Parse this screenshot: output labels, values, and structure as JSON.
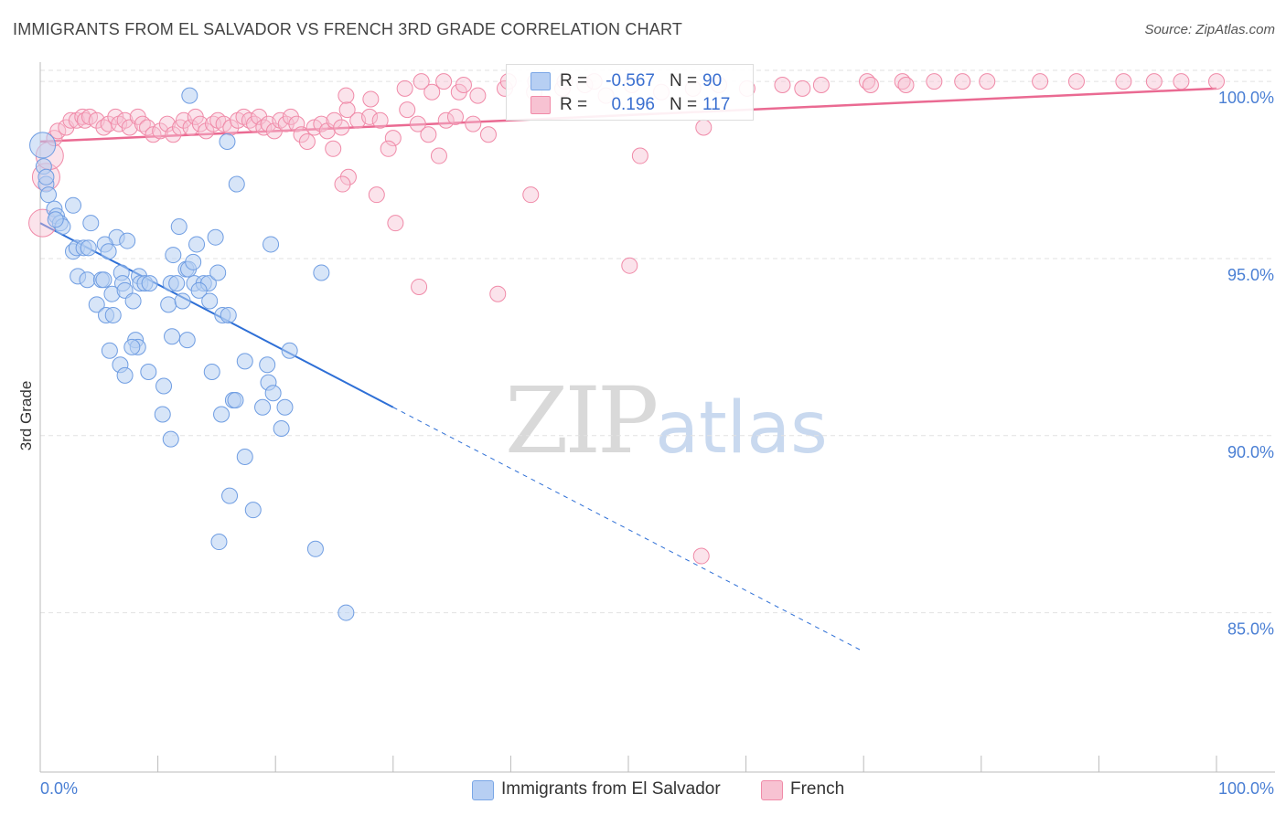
{
  "title": "IMMIGRANTS FROM EL SALVADOR VS FRENCH 3RD GRADE CORRELATION CHART",
  "source": "Source: ZipAtlas.com",
  "watermark": {
    "zip": "ZIP",
    "atlas": "atlas"
  },
  "colors": {
    "blue": "#7aa6e6",
    "blue_fill": "#b7cff3",
    "pink": "#f08aa8",
    "pink_fill": "#f7c2d2",
    "blue_line": "#2e6fd6",
    "pink_line": "#ea6a92",
    "tick_text": "#4a7fd4"
  },
  "stats": [
    {
      "r_label": "R =",
      "r_value": "-0.567",
      "n_label": "N =",
      "n_value": "90",
      "color": "#b7cff3",
      "border": "#7aa6e6"
    },
    {
      "r_label": "R =",
      "r_value": "0.196",
      "n_label": "N =",
      "n_value": "117",
      "color": "#f7c2d2",
      "border": "#f08aa8"
    }
  ],
  "chart_data": {
    "type": "scatter",
    "title": "IMMIGRANTS FROM EL SALVADOR VS FRENCH 3RD GRADE CORRELATION CHART",
    "xlabel": "",
    "ylabel": "3rd Grade",
    "xlim": [
      0,
      100
    ],
    "ylim": [
      80.5,
      100.7
    ],
    "x_tick_labels": [
      "0.0%",
      "100.0%"
    ],
    "y_ticks": [
      85,
      90,
      95,
      100
    ],
    "y_tick_labels": [
      "85.0%",
      "90.0%",
      "95.0%",
      "100.0%"
    ],
    "grid": true,
    "legend_position": "bottom-center",
    "series": [
      {
        "name": "Immigrants from El Salvador",
        "color": "#7aa6e6",
        "points": [
          [
            0.2,
            98.2
          ],
          [
            0.3,
            97.6
          ],
          [
            0.5,
            97.1
          ],
          [
            0.7,
            96.8
          ],
          [
            1.2,
            96.4
          ],
          [
            1.4,
            96.2
          ],
          [
            1.7,
            96.0
          ],
          [
            1.9,
            95.9
          ],
          [
            2.8,
            96.5
          ],
          [
            0.5,
            97.3
          ],
          [
            1.3,
            96.1
          ],
          [
            4.3,
            96.0
          ],
          [
            6.5,
            95.6
          ],
          [
            2.8,
            95.2
          ],
          [
            3.1,
            95.3
          ],
          [
            3.7,
            95.3
          ],
          [
            4.1,
            95.3
          ],
          [
            5.5,
            95.4
          ],
          [
            5.8,
            95.2
          ],
          [
            7.4,
            95.5
          ],
          [
            11.8,
            95.9
          ],
          [
            13.3,
            95.4
          ],
          [
            14.9,
            95.6
          ],
          [
            19.6,
            95.4
          ],
          [
            3.2,
            94.5
          ],
          [
            4.0,
            94.4
          ],
          [
            5.2,
            94.4
          ],
          [
            5.4,
            94.4
          ],
          [
            6.9,
            94.6
          ],
          [
            7.0,
            94.3
          ],
          [
            8.4,
            94.5
          ],
          [
            8.5,
            94.3
          ],
          [
            8.9,
            94.3
          ],
          [
            9.3,
            94.3
          ],
          [
            11.1,
            94.3
          ],
          [
            11.6,
            94.3
          ],
          [
            12.4,
            94.7
          ],
          [
            12.6,
            94.7
          ],
          [
            13.0,
            94.9
          ],
          [
            13.1,
            94.3
          ],
          [
            13.9,
            94.3
          ],
          [
            14.3,
            94.3
          ],
          [
            15.1,
            94.6
          ],
          [
            23.9,
            94.6
          ],
          [
            11.3,
            95.1
          ],
          [
            4.8,
            93.7
          ],
          [
            5.6,
            93.4
          ],
          [
            6.1,
            94.0
          ],
          [
            6.2,
            93.4
          ],
          [
            7.2,
            94.1
          ],
          [
            7.9,
            93.8
          ],
          [
            10.9,
            93.7
          ],
          [
            12.1,
            93.8
          ],
          [
            13.5,
            94.1
          ],
          [
            14.4,
            93.8
          ],
          [
            15.5,
            93.4
          ],
          [
            16.0,
            93.4
          ],
          [
            11.2,
            92.8
          ],
          [
            12.5,
            92.7
          ],
          [
            8.1,
            92.7
          ],
          [
            8.3,
            92.5
          ],
          [
            7.8,
            92.5
          ],
          [
            5.9,
            92.4
          ],
          [
            6.8,
            92.0
          ],
          [
            7.2,
            91.7
          ],
          [
            9.2,
            91.8
          ],
          [
            14.6,
            91.8
          ],
          [
            17.4,
            92.1
          ],
          [
            19.3,
            92.0
          ],
          [
            21.2,
            92.4
          ],
          [
            10.5,
            91.4
          ],
          [
            19.4,
            91.5
          ],
          [
            19.8,
            91.2
          ],
          [
            10.4,
            90.6
          ],
          [
            15.4,
            90.6
          ],
          [
            16.4,
            91.0
          ],
          [
            16.6,
            91.0
          ],
          [
            18.9,
            90.8
          ],
          [
            20.8,
            90.8
          ],
          [
            11.1,
            89.9
          ],
          [
            20.5,
            90.2
          ],
          [
            17.4,
            89.4
          ],
          [
            16.1,
            88.3
          ],
          [
            18.1,
            87.9
          ],
          [
            15.2,
            87.0
          ],
          [
            23.4,
            86.8
          ],
          [
            26.0,
            85.0
          ],
          [
            12.7,
            99.6
          ],
          [
            15.9,
            98.3
          ],
          [
            16.7,
            97.1
          ]
        ]
      },
      {
        "name": "French",
        "color": "#f08aa8",
        "points": [
          [
            0.2,
            96.0
          ],
          [
            0.5,
            97.3
          ],
          [
            0.8,
            97.9
          ],
          [
            1.2,
            98.4
          ],
          [
            1.5,
            98.6
          ],
          [
            2.2,
            98.7
          ],
          [
            2.6,
            98.9
          ],
          [
            3.1,
            98.9
          ],
          [
            3.6,
            99.0
          ],
          [
            3.8,
            98.9
          ],
          [
            4.2,
            99.0
          ],
          [
            4.8,
            98.9
          ],
          [
            5.4,
            98.7
          ],
          [
            5.8,
            98.8
          ],
          [
            6.4,
            99.0
          ],
          [
            6.7,
            98.8
          ],
          [
            7.2,
            98.9
          ],
          [
            7.6,
            98.7
          ],
          [
            8.3,
            99.0
          ],
          [
            8.7,
            98.8
          ],
          [
            9.1,
            98.7
          ],
          [
            9.6,
            98.5
          ],
          [
            10.2,
            98.6
          ],
          [
            10.8,
            98.8
          ],
          [
            11.3,
            98.5
          ],
          [
            11.9,
            98.7
          ],
          [
            12.2,
            98.9
          ],
          [
            12.8,
            98.7
          ],
          [
            13.2,
            99.0
          ],
          [
            13.6,
            98.8
          ],
          [
            14.1,
            98.6
          ],
          [
            14.7,
            98.8
          ],
          [
            15.1,
            98.9
          ],
          [
            15.6,
            98.8
          ],
          [
            16.2,
            98.7
          ],
          [
            16.8,
            98.9
          ],
          [
            17.3,
            99.0
          ],
          [
            17.8,
            98.9
          ],
          [
            18.2,
            98.8
          ],
          [
            18.6,
            99.0
          ],
          [
            19.0,
            98.7
          ],
          [
            19.4,
            98.8
          ],
          [
            19.9,
            98.6
          ],
          [
            20.4,
            98.9
          ],
          [
            20.9,
            98.8
          ],
          [
            21.3,
            99.0
          ],
          [
            21.8,
            98.8
          ],
          [
            22.2,
            98.5
          ],
          [
            22.7,
            98.3
          ],
          [
            23.3,
            98.7
          ],
          [
            23.9,
            98.8
          ],
          [
            24.4,
            98.6
          ],
          [
            25.0,
            98.9
          ],
          [
            25.6,
            98.7
          ],
          [
            26.1,
            99.2
          ],
          [
            27.0,
            98.9
          ],
          [
            28.0,
            99.0
          ],
          [
            28.9,
            98.9
          ],
          [
            30.0,
            98.4
          ],
          [
            31.2,
            99.2
          ],
          [
            32.1,
            98.8
          ],
          [
            33.0,
            98.5
          ],
          [
            34.5,
            98.9
          ],
          [
            35.3,
            99.0
          ],
          [
            36.8,
            98.8
          ],
          [
            38.1,
            98.5
          ],
          [
            24.9,
            98.1
          ],
          [
            29.6,
            98.1
          ],
          [
            33.9,
            97.9
          ],
          [
            26.2,
            97.3
          ],
          [
            28.6,
            96.8
          ],
          [
            25.7,
            97.1
          ],
          [
            30.2,
            96.0
          ],
          [
            32.2,
            94.2
          ],
          [
            38.9,
            94.0
          ],
          [
            41.7,
            96.8
          ],
          [
            51.0,
            97.9
          ],
          [
            50.1,
            94.8
          ],
          [
            56.4,
            98.7
          ],
          [
            26.0,
            99.6
          ],
          [
            28.1,
            99.5
          ],
          [
            31.0,
            99.8
          ],
          [
            33.3,
            99.7
          ],
          [
            35.6,
            99.7
          ],
          [
            37.2,
            99.6
          ],
          [
            39.5,
            99.8
          ],
          [
            42.0,
            99.7
          ],
          [
            44.4,
            99.8
          ],
          [
            46.3,
            99.9
          ],
          [
            48.1,
            99.6
          ],
          [
            50.3,
            99.9
          ],
          [
            52.8,
            99.7
          ],
          [
            55.5,
            99.8
          ],
          [
            57.7,
            99.9
          ],
          [
            60.1,
            99.8
          ],
          [
            63.1,
            99.9
          ],
          [
            64.8,
            99.8
          ],
          [
            66.4,
            99.9
          ],
          [
            70.3,
            100.0
          ],
          [
            70.6,
            99.9
          ],
          [
            73.3,
            100.0
          ],
          [
            73.6,
            99.9
          ],
          [
            76.0,
            100.0
          ],
          [
            78.4,
            100.0
          ],
          [
            80.5,
            100.0
          ],
          [
            85.0,
            100.0
          ],
          [
            88.1,
            100.0
          ],
          [
            92.1,
            100.0
          ],
          [
            94.7,
            100.0
          ],
          [
            97.0,
            100.0
          ],
          [
            100.0,
            100.0
          ],
          [
            56.2,
            86.6
          ],
          [
            32.4,
            100.0
          ],
          [
            34.3,
            100.0
          ],
          [
            36.0,
            99.9
          ],
          [
            39.8,
            100.0
          ],
          [
            42.1,
            100.0
          ],
          [
            44.6,
            100.0
          ],
          [
            47.1,
            100.0
          ]
        ]
      }
    ],
    "trend_lines": [
      {
        "series": "Immigrants from El Salvador",
        "x": [
          0,
          30
        ],
        "y": [
          96.0,
          90.8
        ],
        "dashed_extension_to": [
          70,
          83.9
        ]
      },
      {
        "series": "French",
        "x": [
          0,
          100
        ],
        "y": [
          98.3,
          99.8
        ]
      }
    ]
  },
  "legend": [
    {
      "label": "Immigrants from El Salvador",
      "color": "#b7cff3",
      "border": "#7aa6e6"
    },
    {
      "label": "French",
      "color": "#f7c2d2",
      "border": "#f08aa8"
    }
  ]
}
